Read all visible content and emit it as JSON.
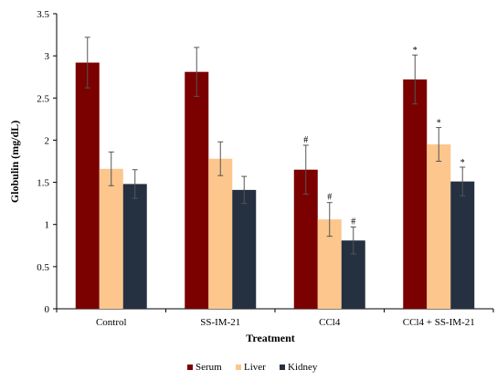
{
  "chart_data": {
    "type": "bar",
    "xlabel": "Treatment",
    "ylabel": "Globulin  (mg/dL)",
    "ylim": [
      0,
      3.5
    ],
    "yticks": [
      "0",
      "0.5",
      "1",
      "1.5",
      "2",
      "2.5",
      "3",
      "3.5"
    ],
    "grid": false,
    "legend_position": "bottom",
    "categories": [
      "Control",
      "SS-IM-21",
      "CCl4",
      "CCl4 + SS-IM-21"
    ],
    "series": [
      {
        "name": "Serum",
        "color": "#7b0000",
        "values": [
          2.92,
          2.81,
          1.65,
          2.72
        ],
        "errors": [
          0.3,
          0.29,
          0.29,
          0.29
        ],
        "marks": [
          "",
          "",
          "#",
          "*"
        ]
      },
      {
        "name": "Liver",
        "color": "#fcc68d",
        "values": [
          1.66,
          1.78,
          1.06,
          1.95
        ],
        "errors": [
          0.2,
          0.2,
          0.2,
          0.2
        ],
        "marks": [
          "",
          "",
          "#",
          "*"
        ]
      },
      {
        "name": "Kidney",
        "color": "#253040",
        "values": [
          1.48,
          1.41,
          0.81,
          1.51
        ],
        "errors": [
          0.17,
          0.16,
          0.16,
          0.17
        ],
        "marks": [
          "",
          "",
          "#",
          "*"
        ]
      }
    ]
  }
}
